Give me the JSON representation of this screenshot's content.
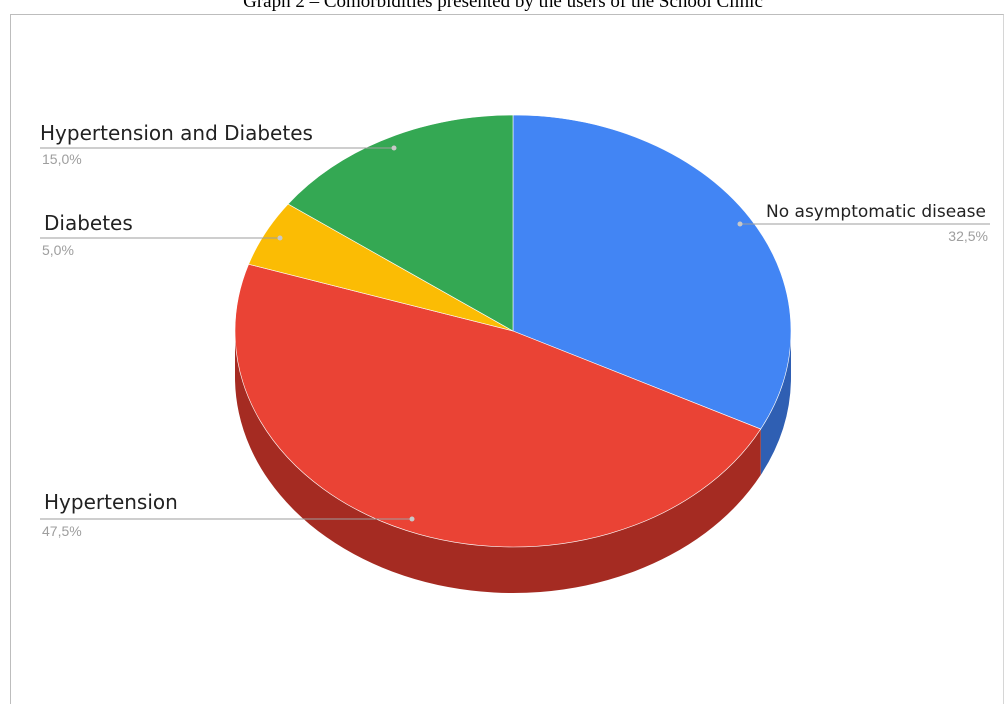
{
  "title": "Graph 2 – Comorbidities presented by the users of the School Clinic",
  "chart_data": {
    "type": "pie",
    "style": "3d",
    "slices": [
      {
        "label": "No asymptomatic disease",
        "value": 32.5,
        "value_label": "32,5%",
        "color": "#4285f4"
      },
      {
        "label": "Hypertension",
        "value": 47.5,
        "value_label": "47,5%",
        "color": "#ea4335"
      },
      {
        "label": "Diabetes",
        "value": 5.0,
        "value_label": "5,0%",
        "color": "#fbbc04"
      },
      {
        "label": "Hypertension and Diabetes",
        "value": 15.0,
        "value_label": "15,0%",
        "color": "#34a853"
      }
    ],
    "colors": {
      "blue_side": "#2f5fb3",
      "red_side": "#a52b22"
    },
    "legend": "none"
  }
}
